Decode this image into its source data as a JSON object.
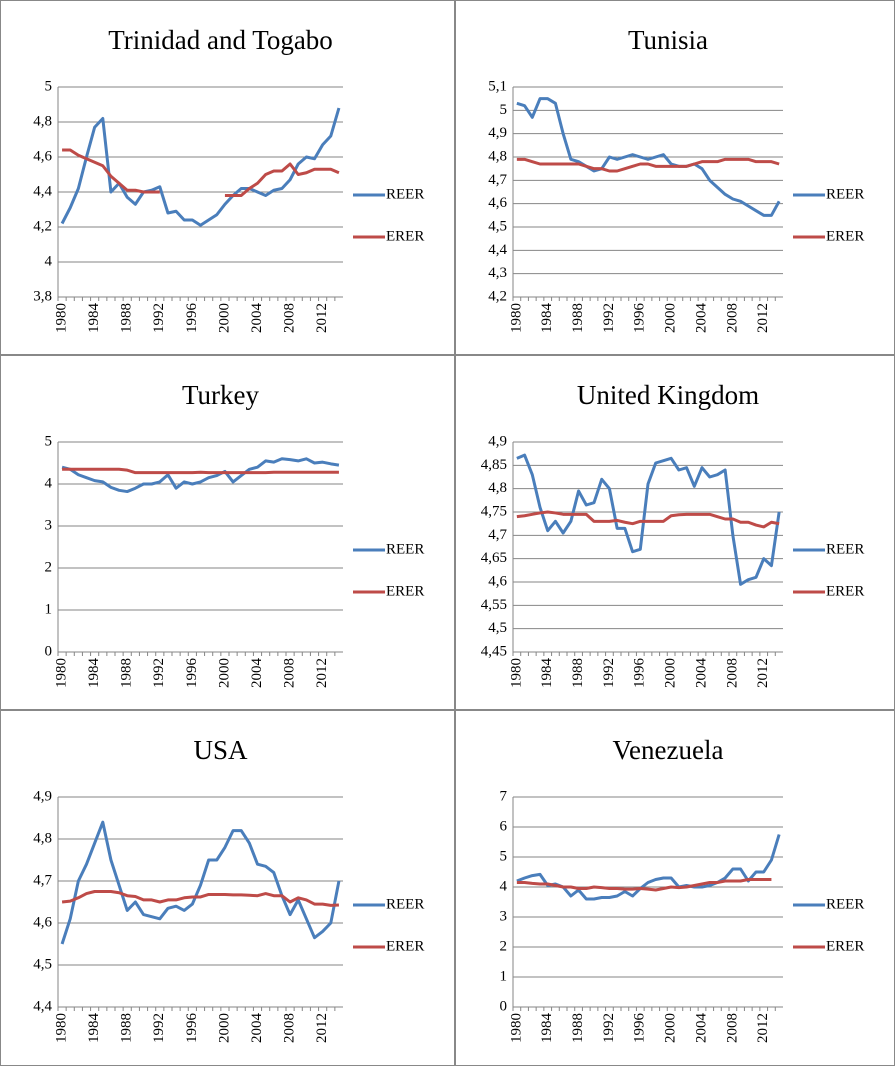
{
  "chart_data": [
    {
      "type": "line",
      "title": "Trinidad and Togabo",
      "categories": [
        "1980",
        null,
        null,
        null,
        "1984",
        null,
        null,
        null,
        "1988",
        null,
        null,
        null,
        "1992",
        null,
        null,
        null,
        "1996",
        null,
        null,
        null,
        "2000",
        null,
        null,
        null,
        "2004",
        null,
        null,
        null,
        "2008",
        null,
        null,
        null,
        "2012",
        null,
        null
      ],
      "series": [
        {
          "name": "REER",
          "color": "#4a7ebb",
          "values": [
            4.22,
            4.31,
            4.42,
            4.6,
            4.77,
            4.82,
            4.4,
            4.45,
            4.37,
            4.33,
            4.4,
            4.41,
            4.43,
            4.28,
            4.29,
            4.24,
            4.24,
            4.21,
            4.24,
            4.27,
            4.33,
            4.38,
            4.42,
            4.42,
            4.4,
            4.38,
            4.41,
            4.42,
            4.47,
            4.56,
            4.6,
            4.59,
            4.67,
            4.72,
            4.88
          ]
        },
        {
          "name": "ERER",
          "color": "#be4b48",
          "values": [
            4.64,
            4.64,
            4.61,
            4.59,
            4.57,
            4.55,
            4.49,
            4.45,
            4.41,
            4.41,
            4.4,
            4.4,
            4.4,
            null,
            null,
            null,
            null,
            null,
            null,
            null,
            4.38,
            4.38,
            4.38,
            4.42,
            4.45,
            4.5,
            4.52,
            4.52,
            4.56,
            4.5,
            4.51,
            4.53,
            4.53,
            4.53,
            4.51
          ]
        }
      ],
      "ylim": [
        3.8,
        5
      ],
      "yticks": [
        {
          "value": 3.8,
          "label": "3,8"
        },
        4,
        {
          "value": 4.2,
          "label": "4,2"
        },
        {
          "value": 4.4,
          "label": "4,4"
        },
        {
          "value": 4.6,
          "label": "4,6"
        },
        {
          "value": 4.8,
          "label": "4,8"
        },
        5
      ],
      "grid": true,
      "legend": "right"
    },
    {
      "type": "line",
      "title": "Tunisia",
      "categories": [
        "1980",
        null,
        null,
        null,
        "1984",
        null,
        null,
        null,
        "1988",
        null,
        null,
        null,
        "1992",
        null,
        null,
        null,
        "1996",
        null,
        null,
        null,
        "2000",
        null,
        null,
        null,
        "2004",
        null,
        null,
        null,
        "2008",
        null,
        null,
        null,
        "2012",
        null,
        null
      ],
      "series": [
        {
          "name": "REER",
          "color": "#4a7ebb",
          "values": [
            5.03,
            5.02,
            4.97,
            5.05,
            5.05,
            5.03,
            4.9,
            4.79,
            4.78,
            4.76,
            4.74,
            4.75,
            4.8,
            4.79,
            4.8,
            4.81,
            4.8,
            4.79,
            4.8,
            4.81,
            4.77,
            4.76,
            4.76,
            4.77,
            4.75,
            4.7,
            4.67,
            4.64,
            4.62,
            4.61,
            4.59,
            4.57,
            4.55,
            4.55,
            4.61
          ]
        },
        {
          "name": "ERER",
          "color": "#be4b48",
          "values": [
            4.79,
            4.79,
            4.78,
            4.77,
            4.77,
            4.77,
            4.77,
            4.77,
            4.77,
            4.76,
            4.75,
            4.75,
            4.74,
            4.74,
            4.75,
            4.76,
            4.77,
            4.77,
            4.76,
            4.76,
            4.76,
            4.76,
            4.76,
            4.77,
            4.78,
            4.78,
            4.78,
            4.79,
            4.79,
            4.79,
            4.79,
            4.78,
            4.78,
            4.78,
            4.77
          ]
        }
      ],
      "ylim": [
        4.2,
        5.1
      ],
      "yticks": [
        {
          "value": 4.2,
          "label": "4,2"
        },
        {
          "value": 4.3,
          "label": "4,3"
        },
        {
          "value": 4.4,
          "label": "4,4"
        },
        {
          "value": 4.5,
          "label": "4,5"
        },
        {
          "value": 4.6,
          "label": "4,6"
        },
        {
          "value": 4.7,
          "label": "4,7"
        },
        {
          "value": 4.8,
          "label": "4,8"
        },
        {
          "value": 4.9,
          "label": "4,9"
        },
        5,
        {
          "value": 5.1,
          "label": "5,1"
        }
      ],
      "grid": true,
      "legend": "right"
    },
    {
      "type": "line",
      "title": "Turkey",
      "categories": [
        "1980",
        null,
        null,
        null,
        "1984",
        null,
        null,
        null,
        "1988",
        null,
        null,
        null,
        "1992",
        null,
        null,
        null,
        "1996",
        null,
        null,
        null,
        "2000",
        null,
        null,
        null,
        "2004",
        null,
        null,
        null,
        "2008",
        null,
        null,
        null,
        "2012",
        null,
        null
      ],
      "series": [
        {
          "name": "REER",
          "color": "#4a7ebb",
          "values": [
            4.4,
            4.35,
            4.22,
            4.15,
            4.08,
            4.05,
            3.92,
            3.85,
            3.82,
            3.9,
            4.0,
            4.0,
            4.05,
            4.22,
            3.9,
            4.05,
            4.0,
            4.05,
            4.15,
            4.2,
            4.3,
            4.05,
            4.2,
            4.35,
            4.4,
            4.55,
            4.52,
            4.6,
            4.58,
            4.55,
            4.6,
            4.5,
            4.52,
            4.48,
            4.45
          ]
        },
        {
          "name": "ERER",
          "color": "#be4b48",
          "values": [
            4.35,
            4.35,
            4.35,
            4.35,
            4.35,
            4.35,
            4.35,
            4.35,
            4.33,
            4.27,
            4.27,
            4.27,
            4.27,
            4.27,
            4.27,
            4.27,
            4.27,
            4.28,
            4.27,
            4.27,
            4.27,
            4.27,
            4.27,
            4.27,
            4.27,
            4.27,
            4.28,
            4.28,
            4.28,
            4.28,
            4.28,
            4.28,
            4.28,
            4.28,
            4.28
          ]
        }
      ],
      "ylim": [
        0,
        5
      ],
      "yticks": [
        0,
        1,
        2,
        3,
        4,
        5
      ],
      "grid": true,
      "legend": "right"
    },
    {
      "type": "line",
      "title": "United Kingdom",
      "categories": [
        "1980",
        null,
        null,
        null,
        "1984",
        null,
        null,
        null,
        "1988",
        null,
        null,
        null,
        "1992",
        null,
        null,
        null,
        "1996",
        null,
        null,
        null,
        "2000",
        null,
        null,
        null,
        "2004",
        null,
        null,
        null,
        "2008",
        null,
        null,
        null,
        "2012",
        null,
        null
      ],
      "series": [
        {
          "name": "REER",
          "color": "#4a7ebb",
          "values": [
            4.865,
            4.872,
            4.83,
            4.76,
            4.71,
            4.73,
            4.705,
            4.73,
            4.795,
            4.765,
            4.77,
            4.82,
            4.8,
            4.715,
            4.715,
            4.665,
            4.67,
            4.81,
            4.855,
            4.86,
            4.865,
            4.84,
            4.845,
            4.805,
            4.845,
            4.825,
            4.83,
            4.84,
            4.7,
            4.595,
            4.605,
            4.61,
            4.65,
            4.635,
            4.75
          ]
        },
        {
          "name": "ERER",
          "color": "#be4b48",
          "values": [
            4.74,
            4.742,
            4.745,
            4.748,
            4.75,
            4.748,
            4.745,
            4.745,
            4.745,
            4.745,
            4.73,
            4.73,
            4.73,
            4.732,
            4.728,
            4.725,
            4.73,
            4.73,
            4.73,
            4.73,
            4.742,
            4.744,
            4.745,
            4.745,
            4.745,
            4.745,
            4.74,
            4.735,
            4.735,
            4.728,
            4.728,
            4.722,
            4.718,
            4.728,
            4.725
          ]
        }
      ],
      "ylim": [
        4.45,
        4.9
      ],
      "yticks": [
        {
          "value": 4.45,
          "label": "4,45"
        },
        {
          "value": 4.5,
          "label": "4,5"
        },
        {
          "value": 4.55,
          "label": "4,55"
        },
        {
          "value": 4.6,
          "label": "4,6"
        },
        {
          "value": 4.65,
          "label": "4,65"
        },
        {
          "value": 4.7,
          "label": "4,7"
        },
        {
          "value": 4.75,
          "label": "4,75"
        },
        {
          "value": 4.8,
          "label": "4,8"
        },
        {
          "value": 4.85,
          "label": "4,85"
        },
        {
          "value": 4.9,
          "label": "4,9"
        }
      ],
      "grid": true,
      "legend": "right"
    },
    {
      "type": "line",
      "title": "USA",
      "categories": [
        "1980",
        null,
        null,
        null,
        "1984",
        null,
        null,
        null,
        "1988",
        null,
        null,
        null,
        "1992",
        null,
        null,
        null,
        "1996",
        null,
        null,
        null,
        "2000",
        null,
        null,
        null,
        "2004",
        null,
        null,
        null,
        "2008",
        null,
        null,
        null,
        "2012",
        null,
        null
      ],
      "series": [
        {
          "name": "REER",
          "color": "#4a7ebb",
          "values": [
            4.55,
            4.61,
            4.7,
            4.74,
            4.79,
            4.84,
            4.75,
            4.69,
            4.63,
            4.65,
            4.62,
            4.615,
            4.61,
            4.635,
            4.64,
            4.63,
            4.645,
            4.69,
            4.75,
            4.75,
            4.78,
            4.82,
            4.82,
            4.79,
            4.74,
            4.735,
            4.72,
            4.665,
            4.62,
            4.655,
            4.61,
            4.565,
            4.58,
            4.6,
            4.7
          ]
        },
        {
          "name": "ERER",
          "color": "#be4b48",
          "values": [
            4.65,
            4.652,
            4.66,
            4.67,
            4.675,
            4.675,
            4.675,
            4.672,
            4.665,
            4.663,
            4.655,
            4.655,
            4.65,
            4.655,
            4.655,
            4.66,
            4.662,
            4.662,
            4.668,
            4.668,
            4.668,
            4.667,
            4.667,
            4.666,
            4.665,
            4.67,
            4.665,
            4.665,
            4.65,
            4.66,
            4.655,
            4.645,
            4.645,
            4.642,
            4.643
          ]
        }
      ],
      "ylim": [
        4.4,
        4.9
      ],
      "yticks": [
        {
          "value": 4.4,
          "label": "4,4"
        },
        {
          "value": 4.5,
          "label": "4,5"
        },
        {
          "value": 4.6,
          "label": "4,6"
        },
        {
          "value": 4.7,
          "label": "4,7"
        },
        {
          "value": 4.8,
          "label": "4,8"
        },
        {
          "value": 4.9,
          "label": "4,9"
        }
      ],
      "grid": true,
      "legend": "right"
    },
    {
      "type": "line",
      "title": "Venezuela",
      "categories": [
        "1980",
        null,
        null,
        null,
        "1984",
        null,
        null,
        null,
        "1988",
        null,
        null,
        null,
        "1992",
        null,
        null,
        null,
        "1996",
        null,
        null,
        null,
        "2000",
        null,
        null,
        null,
        "2004",
        null,
        null,
        null,
        "2008",
        null,
        null,
        null,
        "2012",
        null,
        null
      ],
      "series": [
        {
          "name": "REER",
          "color": "#4a7ebb",
          "values": [
            4.2,
            4.3,
            4.38,
            4.42,
            4.05,
            4.1,
            4.0,
            3.7,
            3.9,
            3.6,
            3.6,
            3.65,
            3.65,
            3.7,
            3.85,
            3.7,
            3.95,
            4.15,
            4.25,
            4.3,
            4.3,
            4.0,
            4.05,
            4.0,
            4.0,
            4.05,
            4.15,
            4.3,
            4.6,
            4.6,
            4.2,
            4.5,
            4.5,
            4.9,
            5.75
          ]
        },
        {
          "name": "ERER",
          "color": "#be4b48",
          "values": [
            4.15,
            4.15,
            4.12,
            4.1,
            4.1,
            4.05,
            4.0,
            4.0,
            3.95,
            3.95,
            4.0,
            3.98,
            3.95,
            3.95,
            3.93,
            3.93,
            3.95,
            3.93,
            3.9,
            3.95,
            4.0,
            3.98,
            4.0,
            4.05,
            4.1,
            4.15,
            4.15,
            4.2,
            4.2,
            4.2,
            4.25,
            4.25,
            4.25,
            4.25,
            null
          ]
        }
      ],
      "ylim": [
        0,
        7
      ],
      "yticks": [
        0,
        1,
        2,
        3,
        4,
        5,
        6,
        7
      ],
      "grid": true,
      "legend": "right"
    }
  ]
}
